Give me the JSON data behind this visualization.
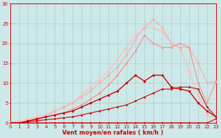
{
  "bg_color": "#cce8e8",
  "grid_color": "#aacccc",
  "line_color_dark_red": "#cc0000",
  "line_color_mid_red": "#ee3333",
  "line_color_light_pink": "#ffaaaa",
  "line_color_pink": "#ff7777",
  "xlabel": "Vent moyen/en rafales ( km/h )",
  "xlabel_color": "#cc0000",
  "xlabel_fontsize": 6,
  "yticks": [
    0,
    5,
    10,
    15,
    20,
    25,
    30
  ],
  "xticks": [
    0,
    1,
    2,
    3,
    4,
    5,
    6,
    7,
    8,
    9,
    10,
    11,
    12,
    13,
    14,
    15,
    16,
    17,
    18,
    19,
    20,
    21,
    22,
    23
  ],
  "xlim": [
    0,
    23
  ],
  "ylim": [
    0,
    30
  ],
  "tick_color": "#cc0000",
  "tick_fontsize": 5,
  "spine_color": "#cc0000",
  "line1_x": [
    0,
    1,
    2,
    3,
    4,
    5,
    6,
    7,
    8,
    9,
    10,
    11,
    12,
    13,
    14,
    15,
    16,
    17,
    18,
    19,
    20,
    21,
    22,
    23
  ],
  "line1_y": [
    0,
    0,
    0,
    0,
    0,
    0,
    0,
    0,
    0,
    0,
    0,
    0,
    0,
    0,
    0,
    0,
    0,
    0,
    0,
    0,
    0,
    0,
    0,
    1
  ],
  "line1_color": "#cc0000",
  "line1_lw": 0.8,
  "line1_ls": "solid",
  "line1_marker": "o",
  "line1_ms": 1.5,
  "line2_x": [
    0,
    1,
    2,
    3,
    4,
    5,
    6,
    7,
    8,
    9,
    10,
    11,
    12,
    13,
    14,
    15,
    16,
    17,
    18,
    19,
    20,
    21,
    22,
    23
  ],
  "line2_y": [
    0,
    0,
    0.3,
    0.5,
    0.8,
    1.0,
    1.3,
    1.5,
    2.0,
    2.5,
    3.0,
    3.5,
    4.0,
    4.5,
    5.5,
    6.5,
    7.5,
    8.5,
    8.5,
    9.0,
    9.0,
    8.5,
    4.0,
    1.5
  ],
  "line2_color": "#cc0000",
  "line2_lw": 0.8,
  "line2_ls": "solid",
  "line2_marker": "o",
  "line2_ms": 1.5,
  "line3_x": [
    0,
    1,
    2,
    3,
    4,
    5,
    6,
    7,
    8,
    9,
    10,
    11,
    12,
    13,
    14,
    15,
    16,
    17,
    18,
    19,
    20,
    21,
    22,
    23
  ],
  "line3_y": [
    0,
    0,
    0.5,
    1,
    1.5,
    2,
    2.5,
    3,
    4,
    5,
    6,
    7,
    8,
    10,
    12,
    10.5,
    12,
    12,
    9,
    8.5,
    8,
    5,
    3,
    1.5
  ],
  "line3_color": "#cc0000",
  "line3_lw": 1.0,
  "line3_ls": "solid",
  "line3_marker": "o",
  "line3_ms": 2.0,
  "line4_x": [
    0,
    1,
    2,
    3,
    4,
    5,
    6,
    7,
    8,
    9,
    10,
    11,
    12,
    13,
    14,
    15,
    16,
    17,
    18,
    19,
    20,
    21,
    22,
    23
  ],
  "line4_y": [
    0,
    0,
    0.3,
    0.8,
    1.5,
    2.0,
    2.5,
    3.5,
    4.5,
    6,
    7.5,
    9.5,
    12,
    15,
    18,
    22,
    20,
    19,
    19,
    20,
    19,
    10,
    5,
    10.5
  ],
  "line4_color": "#ff8888",
  "line4_lw": 0.8,
  "line4_ls": "solid",
  "line4_marker": "o",
  "line4_ms": 1.5,
  "line5_x": [
    0,
    1,
    2,
    3,
    4,
    5,
    6,
    7,
    8,
    9,
    10,
    11,
    12,
    13,
    14,
    15,
    16,
    17,
    18,
    19,
    20,
    21,
    22,
    23
  ],
  "line5_y": [
    0,
    0,
    0.5,
    1,
    2,
    3,
    4,
    5,
    6.5,
    8,
    10,
    12,
    14,
    17,
    21,
    24,
    26,
    24,
    20,
    19,
    19,
    15,
    10,
    10.5
  ],
  "line5_color": "#ffaaaa",
  "line5_lw": 0.8,
  "line5_ls": "solid",
  "line5_marker": "o",
  "line5_ms": 2.0,
  "line6_x": [
    0,
    1,
    2,
    3,
    4,
    5,
    6,
    7,
    8,
    9,
    10,
    11,
    12,
    13,
    14,
    15,
    16,
    17,
    18,
    19,
    20,
    21,
    22,
    23
  ],
  "line6_y": [
    0,
    0.5,
    1,
    1.5,
    2,
    3,
    4,
    5,
    7,
    9,
    11,
    13,
    16,
    19,
    22,
    24,
    24,
    23,
    20,
    19,
    13,
    7,
    2,
    1
  ],
  "line6_color": "#ffbbbb",
  "line6_lw": 0.8,
  "line6_ls": "solid",
  "line6_marker": "^",
  "line6_ms": 2.5
}
